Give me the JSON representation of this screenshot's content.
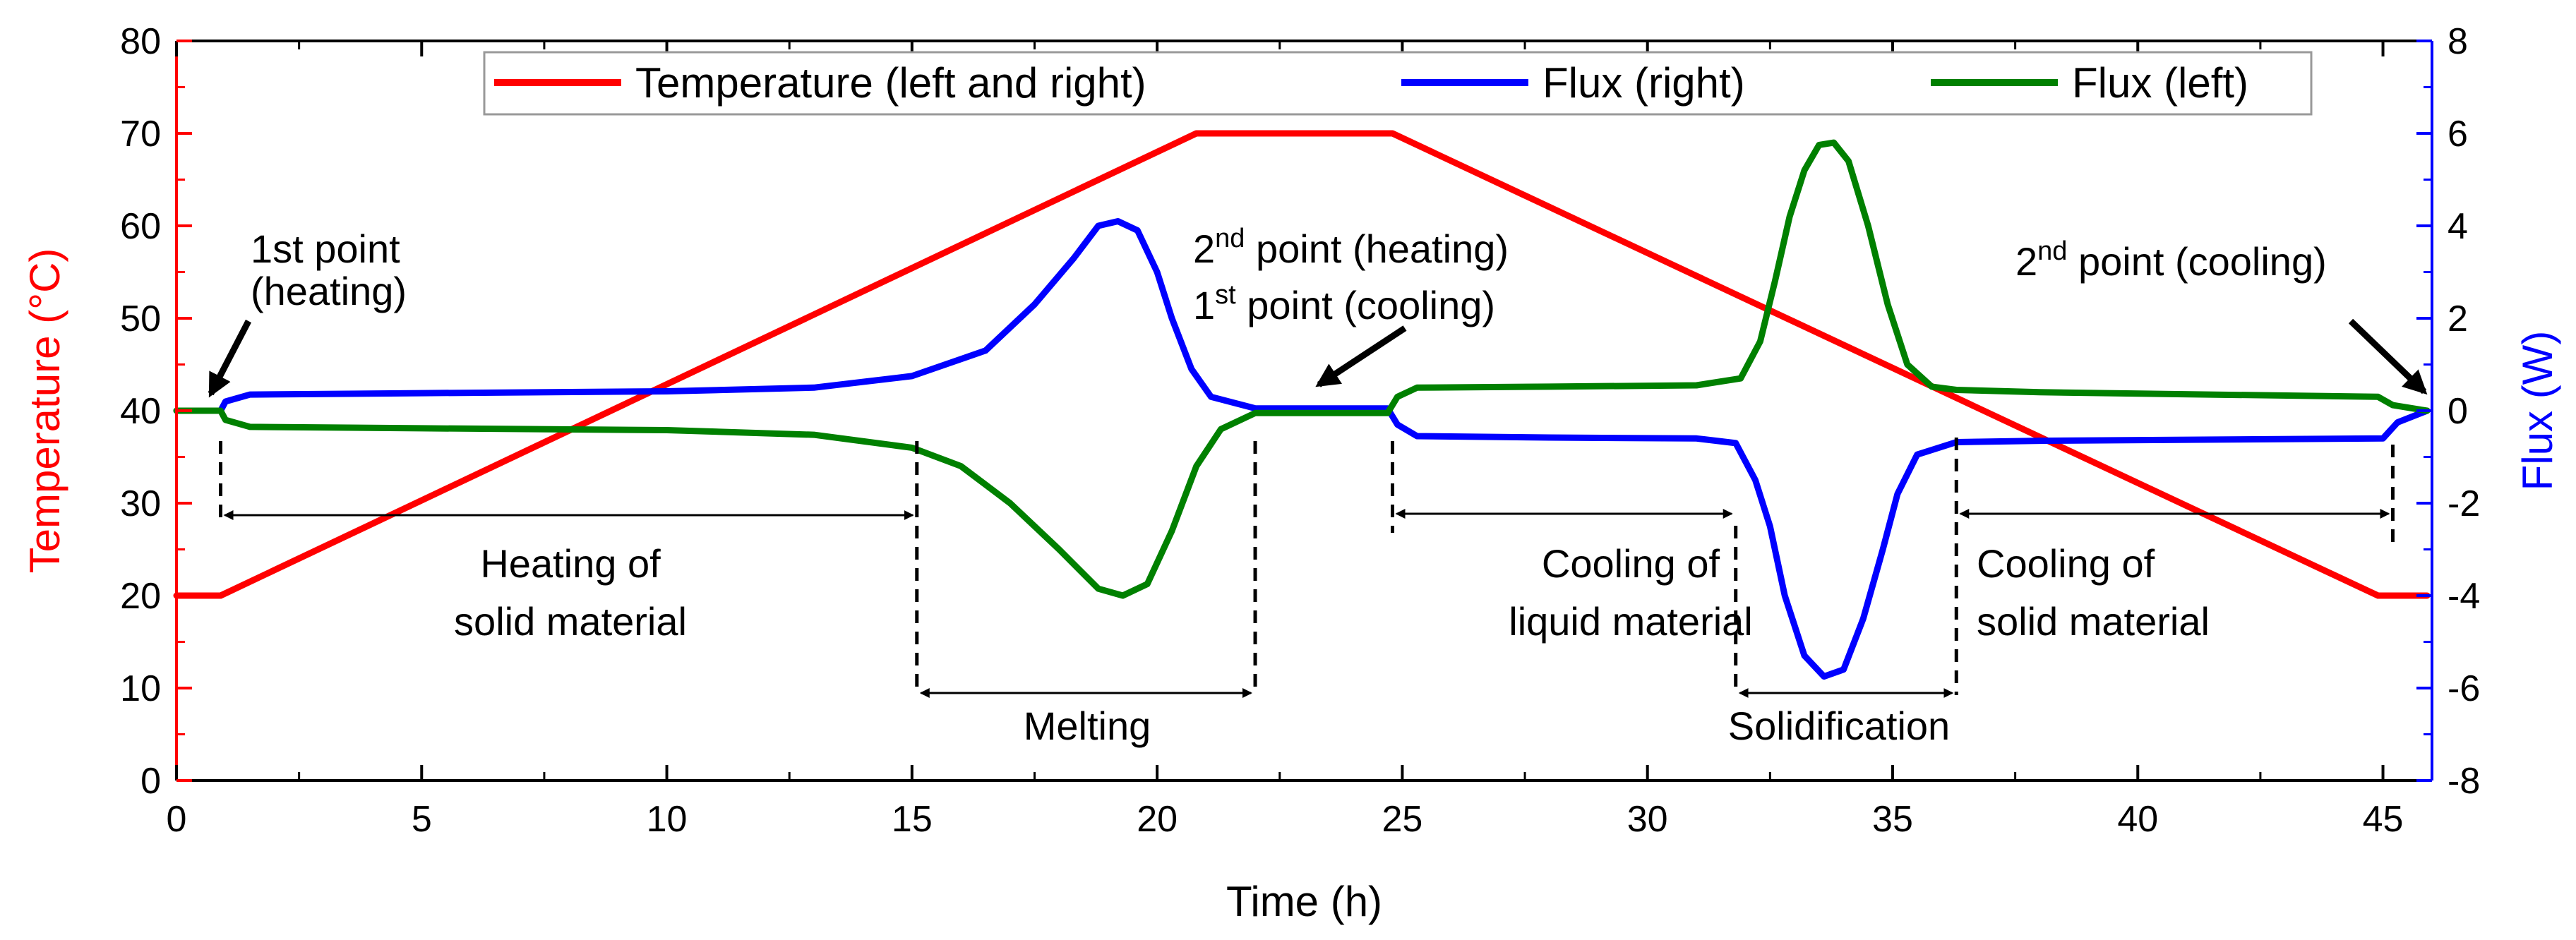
{
  "chart_data": {
    "type": "line",
    "xlabel": "Time (h)",
    "ylabel_left": "Temperature (°C)",
    "ylabel_right": "Flux (W)",
    "xlim": [
      0,
      46
    ],
    "ylim_left": [
      0,
      80
    ],
    "ylim_right": [
      -8,
      8
    ],
    "x_ticks": [
      0,
      5,
      10,
      15,
      20,
      25,
      30,
      35,
      40,
      45
    ],
    "y_left_ticks": [
      0,
      10,
      20,
      30,
      40,
      50,
      60,
      70,
      80
    ],
    "y_right_ticks": [
      -8,
      -6,
      -4,
      -2,
      0,
      2,
      4,
      6,
      8
    ],
    "colors": {
      "temperature": "#ff0000",
      "flux_right": "#0000ff",
      "flux_left": "#008000"
    },
    "legend": [
      "Temperature (left and right)",
      "Flux (right)",
      "Flux (left)"
    ],
    "series": [
      {
        "name": "Temperature (left and right)",
        "axis": "left",
        "x": [
          0,
          0.9,
          20.8,
          24.8,
          44.9,
          45.9
        ],
        "y": [
          20,
          20,
          70,
          70,
          20,
          20
        ]
      },
      {
        "name": "Flux (right)",
        "axis": "right",
        "x": [
          0,
          0.9,
          1.0,
          1.5,
          5,
          10,
          13,
          15,
          16.5,
          17.5,
          18.3,
          18.8,
          19.2,
          19.6,
          20,
          20.3,
          20.7,
          21.1,
          22,
          24.7,
          24.9,
          25.3,
          28,
          31,
          31.8,
          32.2,
          32.5,
          32.8,
          33.2,
          33.6,
          34,
          34.4,
          34.8,
          35.1,
          35.5,
          36.3,
          38,
          45,
          45.3,
          45.9
        ],
        "y": [
          0,
          0,
          0.2,
          0.35,
          0.38,
          0.42,
          0.5,
          0.75,
          1.3,
          2.3,
          3.3,
          4.0,
          4.1,
          3.9,
          3.0,
          2.0,
          0.9,
          0.3,
          0.05,
          0.05,
          -0.3,
          -0.55,
          -0.58,
          -0.6,
          -0.7,
          -1.5,
          -2.5,
          -4.0,
          -5.3,
          -5.75,
          -5.6,
          -4.5,
          -3.0,
          -1.8,
          -0.95,
          -0.68,
          -0.65,
          -0.6,
          -0.25,
          0
        ]
      },
      {
        "name": "Flux (left)",
        "axis": "right",
        "x": [
          0,
          0.9,
          1.0,
          1.5,
          5,
          10,
          13,
          15,
          16,
          17,
          18,
          18.8,
          19.3,
          19.8,
          20.3,
          20.8,
          21.3,
          22,
          24.7,
          24.9,
          25.3,
          28,
          31,
          31.9,
          32.3,
          32.6,
          32.9,
          33.2,
          33.5,
          33.8,
          34.1,
          34.5,
          34.9,
          35.3,
          35.8,
          36.3,
          38,
          44.9,
          45.2,
          45.9
        ],
        "y": [
          0,
          0,
          -0.2,
          -0.35,
          -0.38,
          -0.42,
          -0.52,
          -0.8,
          -1.2,
          -2.0,
          -3.0,
          -3.85,
          -4.0,
          -3.75,
          -2.6,
          -1.2,
          -0.4,
          -0.05,
          -0.05,
          0.3,
          0.5,
          0.52,
          0.55,
          0.7,
          1.5,
          2.8,
          4.2,
          5.2,
          5.75,
          5.8,
          5.4,
          4.0,
          2.3,
          1.0,
          0.52,
          0.45,
          0.4,
          0.3,
          0.12,
          0
        ]
      }
    ],
    "annotations": [
      {
        "id": "p1",
        "lines": [
          "1st point",
          "(heating)"
        ]
      },
      {
        "id": "p2",
        "line1_prefix": "2",
        "line1_sup": "nd",
        "line1_rest": " point (heating)",
        "line2_prefix": "1",
        "line2_sup": "st",
        "line2_rest": " point (cooling)"
      },
      {
        "id": "p3",
        "prefix": "2",
        "sup": "nd",
        "rest": " point (cooling)"
      }
    ],
    "regions": [
      {
        "id": "heating-solid",
        "x_start": 0.9,
        "x_end": 15.1,
        "lines": [
          "Heating of",
          "solid material"
        ]
      },
      {
        "id": "melting",
        "x_start": 15.1,
        "x_end": 22.0,
        "lines": [
          "Melting"
        ]
      },
      {
        "id": "cooling-liquid",
        "x_start": 24.8,
        "x_end": 31.8,
        "lines": [
          "Cooling of",
          "liquid material"
        ]
      },
      {
        "id": "solidification",
        "x_start": 31.8,
        "x_end": 36.3,
        "lines": [
          "Solidification"
        ]
      },
      {
        "id": "cooling-solid",
        "x_start": 36.3,
        "x_end": 45.2,
        "lines": [
          "Cooling of",
          "solid material"
        ]
      }
    ]
  }
}
